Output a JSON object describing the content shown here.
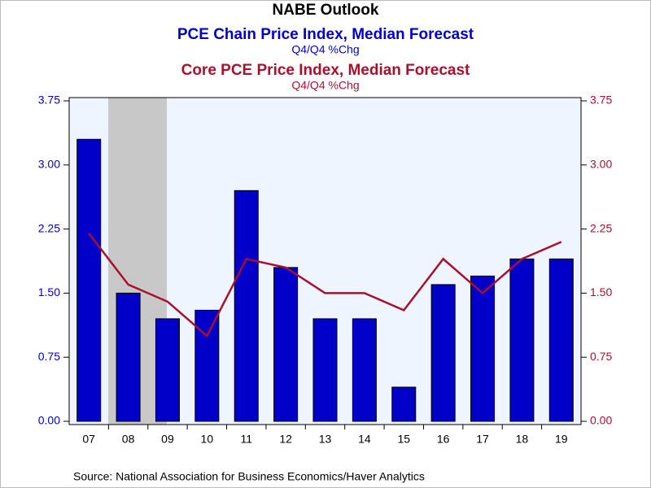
{
  "chart_data": {
    "type": "bar",
    "title": "NABE Outlook",
    "source": "Source:  National Association for Business Economics/Haver Analytics",
    "categories": [
      "07",
      "08",
      "09",
      "10",
      "11",
      "12",
      "13",
      "14",
      "15",
      "16",
      "17",
      "18",
      "19"
    ],
    "series": [
      {
        "name": "PCE Chain Price Index, Median Forecast",
        "unit": "Q4/Q4 %Chg",
        "type": "bar",
        "color": "#0000c8",
        "axis": "y",
        "values": [
          3.3,
          1.5,
          1.2,
          1.3,
          2.7,
          1.8,
          1.2,
          1.2,
          0.4,
          1.6,
          1.7,
          1.9,
          1.9
        ]
      },
      {
        "name": "Core PCE Price Index, Median Forecast",
        "unit": "Q4/Q4 %Chg",
        "type": "line",
        "color": "#a8102e",
        "axis": "y2",
        "values": [
          2.2,
          1.6,
          1.4,
          1.0,
          1.9,
          1.8,
          1.5,
          1.5,
          1.3,
          1.9,
          1.5,
          1.9,
          2.1
        ]
      }
    ],
    "ylim": [
      0,
      3.75
    ],
    "yticks": [
      {
        "value": 0,
        "label": "0.00"
      },
      {
        "value": 0.75,
        "label": "0.75"
      },
      {
        "value": 1.5,
        "label": "1.50"
      },
      {
        "value": 2.25,
        "label": "2.25"
      },
      {
        "value": 3,
        "label": "3.00"
      },
      {
        "value": 3.75,
        "label": "3.75"
      }
    ],
    "y2lim": [
      0,
      3.75
    ],
    "y2ticks": [
      {
        "value": 0,
        "label": "0.00"
      },
      {
        "value": 0.75,
        "label": "0.75"
      },
      {
        "value": 1.5,
        "label": "1.50"
      },
      {
        "value": 2.25,
        "label": "2.25"
      },
      {
        "value": 3,
        "label": "3.00"
      },
      {
        "value": 3.75,
        "label": "3.75"
      }
    ],
    "grid": false
  }
}
